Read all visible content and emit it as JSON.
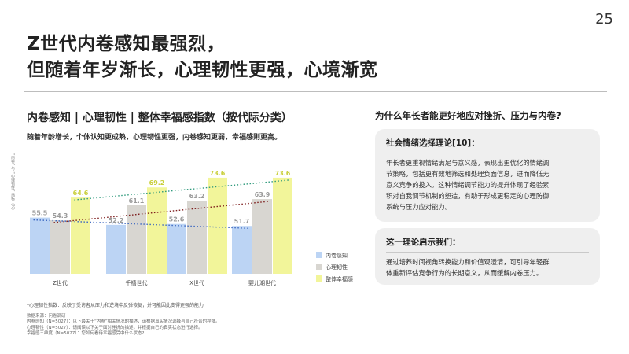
{
  "page_number": "25",
  "title_lines": [
    "Z世代内卷感知最强烈，",
    "但随着年岁渐长，心理韧性更强，心境渐宽"
  ],
  "chart_title": "内卷感知 | 心理韧性 | 整体幸福感指数（按代际分类）",
  "chart_subtitle": "随着年龄增长，个体认知更成熟，心理韧性更强，内卷感知更弱，幸福感则更高。",
  "side_label": "“内卷” 与 “心理韧性” 指标（%）",
  "colors": {
    "series_1": "#bcd4f4",
    "series_2": "#d8d6d1",
    "series_3": "#f2f59a",
    "trend_1": "#3a66c0",
    "trend_2": "#7d1c1c",
    "trend_3": "#2f9a7c",
    "card_bg": "#efefef"
  },
  "chart_data": {
    "type": "bar",
    "title": "内卷感知 | 心理韧性 | 整体幸福感指数（按代际分类）",
    "categories": [
      "Z世代",
      "千禧世代",
      "X世代",
      "婴儿潮世代"
    ],
    "series": [
      {
        "name": "内卷感知",
        "values": [
          55.5,
          52.2,
          52.6,
          51.7
        ]
      },
      {
        "name": "心理韧性",
        "values": [
          54.3,
          61.1,
          63.2,
          63.9
        ]
      },
      {
        "name": "整体幸福感",
        "values": [
          64.6,
          69.2,
          73.6,
          73.6
        ]
      }
    ],
    "value_labels": [
      [
        "55.5",
        "52.2",
        "52.6",
        "51.7"
      ],
      [
        "54.3",
        "61.1",
        "63.2",
        "63.9"
      ],
      [
        "64.6",
        "69.2",
        "73.6",
        "73.6"
      ]
    ],
    "trend_lines": true,
    "legend_position": "right",
    "grid": false
  },
  "notes": {
    "main": "*心理韧性指数：反映了受访者从压力和逆境中反弹恢复，并可能因此变得更强的能力",
    "lines": [
      "数据来源：问卷调研",
      "内卷感知（N=5027）：以下最关于“内卷”相关情况的描述，请根据真实情况选择与自己符合的程度。",
      "心理韧性（N=5027）：请阅读以下关于面对挫折的描述，并根据自己的真实状态进行选择。",
      "幸福感三维度（N=5027）：您如何看待幸福感受中什么状态?"
    ]
  },
  "right_heading": "为什么年长者能更好地应对挫折、压力与内卷?",
  "card1": {
    "title": "社会情绪选择理论[10]：",
    "lines": [
      "年长者更重视情绪满足与意义感，表现出更优化的情绪调",
      "节策略，包括更有效地筛选和处理负面信息，进而降低无",
      "意义竞争的投入。这种情绪调节能力的提升体现了经验累",
      "积对自我调节机制的塑造，有助于形成更稳定的心理防御",
      "系统与压力应对能力。"
    ]
  },
  "card2": {
    "title": "这一理论启示我们：",
    "lines": [
      "通过培养时间视角转换能力和价值观澄清，可引导年轻群",
      "体重新评估竞争行为的长期意义，从而缓解内卷压力。"
    ]
  }
}
